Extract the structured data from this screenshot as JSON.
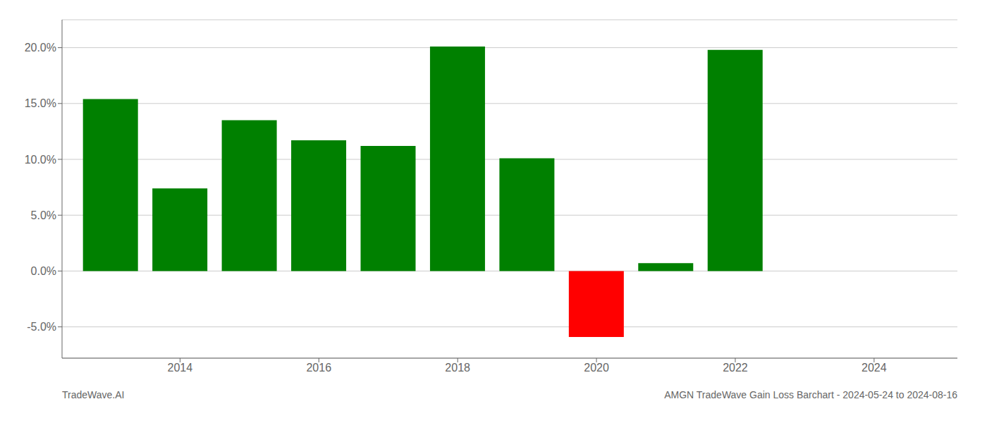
{
  "chart_data": {
    "type": "bar",
    "title": "AMGN TradeWave Gain Loss Barchart - 2024-05-24 to 2024-08-16",
    "annotations": [
      "TradeWave.AI"
    ],
    "x": [
      2013,
      2014,
      2015,
      2016,
      2017,
      2018,
      2019,
      2020,
      2021,
      2022
    ],
    "values": [
      0.154,
      0.074,
      0.135,
      0.117,
      0.112,
      0.201,
      0.101,
      -0.059,
      0.007,
      0.198
    ],
    "colors": [
      "#008000",
      "#008000",
      "#008000",
      "#008000",
      "#008000",
      "#008000",
      "#008000",
      "#ff0000",
      "#008000",
      "#008000"
    ],
    "xlim": [
      2012.3,
      2025.2
    ],
    "xticks": [
      2014,
      2016,
      2018,
      2020,
      2022,
      2024
    ],
    "ylim": [
      -0.078,
      0.225
    ],
    "yticks": [
      {
        "value": -0.05,
        "label": "-5.0%"
      },
      {
        "value": 0.0,
        "label": "0.0%"
      },
      {
        "value": 0.05,
        "label": "5.0%"
      },
      {
        "value": 0.1,
        "label": "10.0%"
      },
      {
        "value": 0.15,
        "label": "15.0%"
      },
      {
        "value": 0.2,
        "label": "20.0%"
      }
    ],
    "grid": true
  }
}
